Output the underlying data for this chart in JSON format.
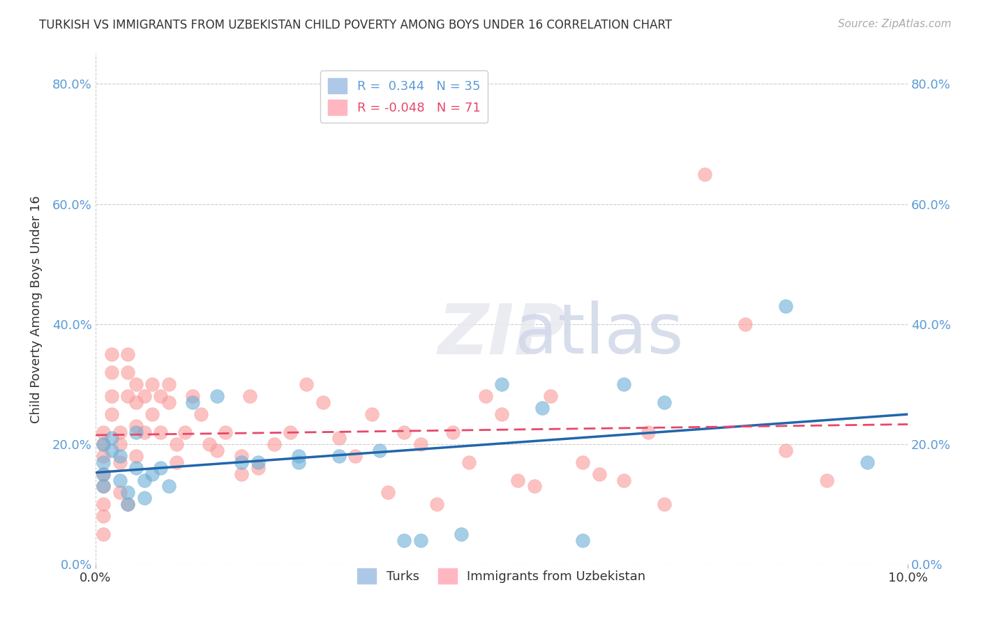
{
  "title": "TURKISH VS IMMIGRANTS FROM UZBEKISTAN CHILD POVERTY AMONG BOYS UNDER 16 CORRELATION CHART",
  "source": "Source: ZipAtlas.com",
  "xlabel": "",
  "ylabel": "Child Poverty Among Boys Under 16",
  "xlim": [
    0,
    0.1
  ],
  "ylim": [
    0,
    0.85
  ],
  "yticks": [
    0,
    0.2,
    0.4,
    0.6,
    0.8
  ],
  "yticklabels": [
    "0.0%",
    "20.0%",
    "40.0%",
    "60.0%",
    "80.0%"
  ],
  "xticks": [
    0,
    0.1
  ],
  "xticklabels": [
    "0.0%",
    "10.0%"
  ],
  "legend_blue_label": "R =  0.344   N = 35",
  "legend_pink_label": "R = -0.048   N = 71",
  "turks_color": "#6baed6",
  "uzbek_color": "#fb9a99",
  "turks_R": 0.344,
  "turks_N": 35,
  "uzbek_R": -0.048,
  "uzbek_N": 71,
  "watermark": "ZIPatlas",
  "grid_color": "#cccccc",
  "turks_x": [
    0.001,
    0.001,
    0.001,
    0.001,
    0.002,
    0.002,
    0.003,
    0.003,
    0.004,
    0.004,
    0.005,
    0.005,
    0.006,
    0.006,
    0.007,
    0.008,
    0.009,
    0.012,
    0.015,
    0.018,
    0.02,
    0.025,
    0.025,
    0.03,
    0.035,
    0.038,
    0.04,
    0.045,
    0.05,
    0.055,
    0.06,
    0.065,
    0.07,
    0.085,
    0.095
  ],
  "turks_y": [
    0.2,
    0.17,
    0.15,
    0.13,
    0.21,
    0.19,
    0.18,
    0.14,
    0.12,
    0.1,
    0.22,
    0.16,
    0.14,
    0.11,
    0.15,
    0.16,
    0.13,
    0.27,
    0.28,
    0.17,
    0.17,
    0.18,
    0.17,
    0.18,
    0.19,
    0.04,
    0.04,
    0.05,
    0.3,
    0.26,
    0.04,
    0.3,
    0.27,
    0.43,
    0.17
  ],
  "uzbek_x": [
    0.001,
    0.001,
    0.001,
    0.001,
    0.001,
    0.001,
    0.001,
    0.001,
    0.002,
    0.002,
    0.002,
    0.002,
    0.003,
    0.003,
    0.003,
    0.003,
    0.004,
    0.004,
    0.004,
    0.004,
    0.005,
    0.005,
    0.005,
    0.005,
    0.006,
    0.006,
    0.007,
    0.007,
    0.008,
    0.008,
    0.009,
    0.009,
    0.01,
    0.01,
    0.011,
    0.012,
    0.013,
    0.014,
    0.015,
    0.016,
    0.018,
    0.018,
    0.019,
    0.02,
    0.022,
    0.024,
    0.026,
    0.028,
    0.03,
    0.032,
    0.034,
    0.036,
    0.038,
    0.04,
    0.042,
    0.044,
    0.046,
    0.048,
    0.05,
    0.052,
    0.054,
    0.056,
    0.06,
    0.062,
    0.065,
    0.068,
    0.07,
    0.075,
    0.08,
    0.085,
    0.09
  ],
  "uzbek_y": [
    0.22,
    0.2,
    0.18,
    0.15,
    0.13,
    0.1,
    0.08,
    0.05,
    0.35,
    0.32,
    0.28,
    0.25,
    0.22,
    0.2,
    0.17,
    0.12,
    0.35,
    0.32,
    0.28,
    0.1,
    0.3,
    0.27,
    0.23,
    0.18,
    0.28,
    0.22,
    0.3,
    0.25,
    0.28,
    0.22,
    0.3,
    0.27,
    0.2,
    0.17,
    0.22,
    0.28,
    0.25,
    0.2,
    0.19,
    0.22,
    0.18,
    0.15,
    0.28,
    0.16,
    0.2,
    0.22,
    0.3,
    0.27,
    0.21,
    0.18,
    0.25,
    0.12,
    0.22,
    0.2,
    0.1,
    0.22,
    0.17,
    0.28,
    0.25,
    0.14,
    0.13,
    0.28,
    0.17,
    0.15,
    0.14,
    0.22,
    0.1,
    0.65,
    0.4,
    0.19,
    0.14
  ]
}
